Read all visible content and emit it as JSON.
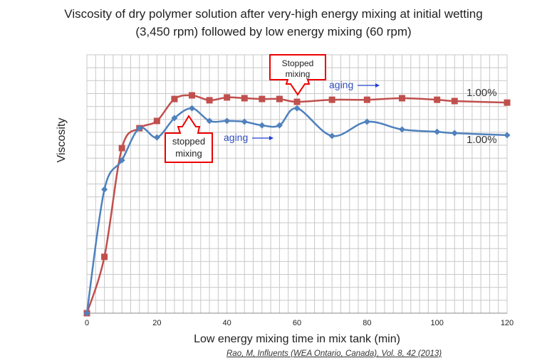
{
  "chart_data": {
    "type": "line",
    "title": [
      "Viscosity of dry polymer solution after very-high energy mixing at initial wetting",
      "(3,450 rpm) followed by low energy mixing (60 rpm)"
    ],
    "xlabel": "Low energy mixing time in mix tank (min)",
    "ylabel": "Viscosity",
    "xlim": [
      0,
      120
    ],
    "ylim": [
      0,
      100
    ],
    "xticks": [
      0,
      20,
      40,
      60,
      80,
      100,
      120
    ],
    "grid": true,
    "series": [
      {
        "name": "1.00% (red)",
        "color": "#c0504d",
        "marker": "square",
        "x": [
          0,
          5,
          10,
          15,
          20,
          25,
          30,
          35,
          40,
          45,
          50,
          55,
          60,
          70,
          80,
          90,
          100,
          105,
          120
        ],
        "y": [
          0,
          21.8,
          63.9,
          71.6,
          74.4,
          82.9,
          84.3,
          82.4,
          83.5,
          83.2,
          82.9,
          82.9,
          81.8,
          82.6,
          82.6,
          83.2,
          82.6,
          82.1,
          81.5
        ]
      },
      {
        "name": "1.00% (blue)",
        "color": "#4f81bd",
        "marker": "diamond",
        "x": [
          0,
          5,
          10,
          15,
          20,
          25,
          30,
          35,
          40,
          45,
          50,
          55,
          60,
          70,
          80,
          90,
          100,
          105,
          120
        ],
        "y": [
          0,
          47.9,
          59.2,
          71.6,
          68.0,
          75.5,
          79.3,
          74.4,
          74.4,
          74.1,
          72.7,
          72.7,
          79.3,
          68.6,
          74.1,
          71.1,
          70.2,
          69.7,
          68.9
        ]
      }
    ],
    "series_labels": [
      "1.00%",
      "1.00%"
    ],
    "annotations": {
      "stopped1": [
        "stopped",
        "mixing"
      ],
      "stopped2": [
        "Stopped",
        "mixing"
      ],
      "aging1": "aging",
      "aging2": "aging"
    }
  },
  "citation": "Rao, M, Influents (WEA Ontario, Canada), Vol. 8, 42 (2013)"
}
